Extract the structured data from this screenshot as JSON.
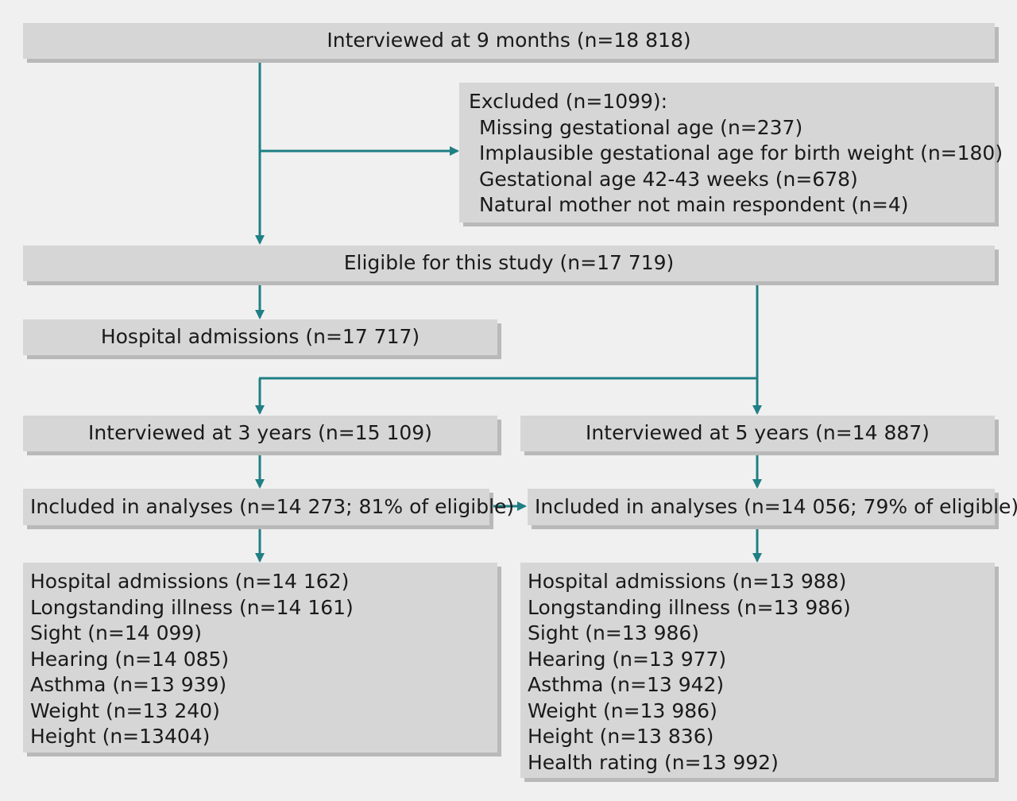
{
  "top_box": {
    "label": "Interviewed at 9 months (n=18 818)"
  },
  "excluded_box": {
    "heading": "Excluded (n=1099):",
    "items": [
      "Missing gestational age (n=237)",
      "Implausible gestational age for birth weight (n=180)",
      "Gestational age 42-43 weeks (n=678)",
      "Natural mother not main respondent (n=4)"
    ]
  },
  "eligible_box": {
    "label": "Eligible for this study (n=17 719)"
  },
  "hospital_box": {
    "label": "Hospital admissions (n=17 717)"
  },
  "three_year": {
    "interviewed": "Interviewed at 3 years (n=15 109)",
    "included": "Included in analyses (n=14 273; 81% of eligible)",
    "outcomes": [
      "Hospital admissions (n=14 162)",
      "Longstanding illness (n=14 161)",
      "Sight (n=14 099)",
      "Hearing (n=14 085)",
      "Asthma (n=13 939)",
      "Weight (n=13 240)",
      "Height (n=13404)"
    ]
  },
  "five_year": {
    "interviewed": "Interviewed at 5 years (n=14 887)",
    "included": "Included in analyses (n=14 056; 79% of eligible)",
    "outcomes": [
      "Hospital admissions (n=13 988)",
      "Longstanding illness (n=13 986)",
      "Sight (n=13 986)",
      "Hearing (n=13 977)",
      "Asthma (n=13 942)",
      "Weight (n=13 986)",
      "Height (n=13 836)",
      "Health rating (n=13 992)"
    ]
  },
  "colors": {
    "arrow": "#1f7f84",
    "box": "#d6d6d6",
    "shadow": "#b9b9b9",
    "background": "#f0f0f0"
  }
}
